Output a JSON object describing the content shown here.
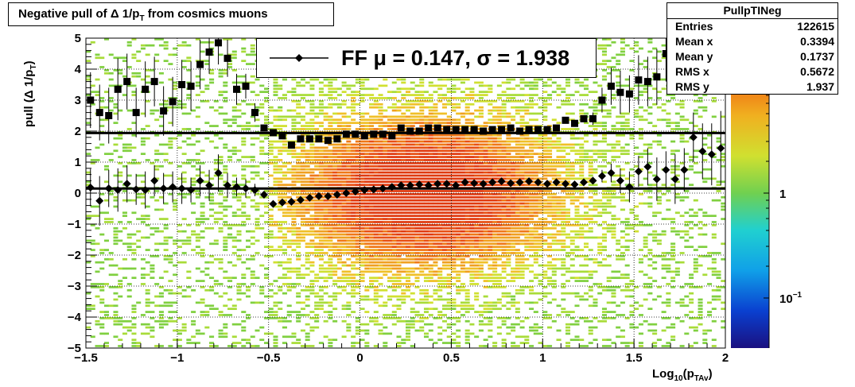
{
  "title": "Negative pull of Δ 1/p",
  "title_sub": "T",
  "title_suffix": " from cosmics muons",
  "stats": {
    "name": "PullpTINeg",
    "rows": [
      {
        "label": "Entries",
        "value": "122615"
      },
      {
        "label": "Mean x",
        "value": "0.3394"
      },
      {
        "label": "Mean y",
        "value": "0.1737"
      },
      {
        "label": "RMS x",
        "value": "0.5672"
      },
      {
        "label": "RMS y",
        "value": "1.937"
      }
    ]
  },
  "legend": {
    "text": "FF μ =  0.147, σ =   1.938"
  },
  "colors": {
    "markers": "#000000",
    "heatmap_core": "#e03a10",
    "heatmap_edge": "#80d040"
  },
  "chart_data": {
    "type": "heatmap",
    "xlabel_main": "Log",
    "xlabel_sub1": "10",
    "xlabel_mid": "(p",
    "xlabel_sub2": "TAv",
    "xlabel_end": ")",
    "ylabel_main": "pull (Δ 1/p",
    "ylabel_sub": "T",
    "ylabel_end": ")",
    "xlim": [
      -1.5,
      2
    ],
    "ylim": [
      -5,
      5
    ],
    "x_ticks": [
      -1.5,
      -1,
      -0.5,
      0,
      0.5,
      1,
      1.5,
      2
    ],
    "x_tick_labels": [
      "−1.5",
      "−1",
      "−0.5",
      "0",
      "0.5",
      "1",
      "1.5",
      "2"
    ],
    "y_ticks": [
      -5,
      -4,
      -3,
      -2,
      -1,
      0,
      1,
      2,
      3,
      4,
      5
    ],
    "y_tick_labels": [
      "−5",
      "−4",
      "−3",
      "−2",
      "−1",
      "0",
      "1",
      "2",
      "3",
      "4",
      "5"
    ],
    "z_scale": "log",
    "z_tick_labels": [
      {
        "base": "1",
        "exp": ""
      },
      {
        "base": "10",
        "exp": "−1"
      }
    ],
    "grid": true,
    "fit_lines": {
      "mean": 0.147,
      "sigma": 1.938
    },
    "series": [
      {
        "name": "mean",
        "marker": "diamond",
        "x": [
          -1.475,
          -1.425,
          -1.375,
          -1.325,
          -1.275,
          -1.225,
          -1.175,
          -1.125,
          -1.075,
          -1.025,
          -0.975,
          -0.925,
          -0.875,
          -0.825,
          -0.775,
          -0.725,
          -0.675,
          -0.625,
          -0.575,
          -0.525,
          -0.475,
          -0.425,
          -0.375,
          -0.325,
          -0.275,
          -0.225,
          -0.175,
          -0.125,
          -0.075,
          -0.025,
          0.025,
          0.075,
          0.125,
          0.175,
          0.225,
          0.275,
          0.325,
          0.375,
          0.425,
          0.475,
          0.525,
          0.575,
          0.625,
          0.675,
          0.725,
          0.775,
          0.825,
          0.875,
          0.925,
          0.975,
          1.025,
          1.075,
          1.125,
          1.175,
          1.225,
          1.275,
          1.325,
          1.375,
          1.425,
          1.475,
          1.525,
          1.575,
          1.625,
          1.675,
          1.725,
          1.775,
          1.825,
          1.875,
          1.925,
          1.975
        ],
        "y": [
          0.18,
          -0.25,
          0.15,
          0.1,
          0.3,
          0.12,
          0.1,
          0.4,
          0.15,
          0.2,
          0.15,
          0.1,
          0.4,
          0.25,
          0.65,
          0.25,
          0.2,
          0.15,
          0.1,
          -0.05,
          -0.35,
          -0.3,
          -0.28,
          -0.22,
          -0.15,
          -0.1,
          -0.1,
          -0.05,
          0.0,
          0.05,
          0.1,
          0.12,
          0.15,
          0.2,
          0.25,
          0.25,
          0.28,
          0.25,
          0.3,
          0.3,
          0.25,
          0.35,
          0.32,
          0.3,
          0.35,
          0.38,
          0.32,
          0.35,
          0.38,
          0.35,
          0.3,
          0.35,
          0.3,
          0.28,
          0.35,
          0.4,
          0.55,
          0.65,
          0.4,
          0.2,
          0.7,
          0.85,
          0.45,
          0.75,
          0.45,
          0.75,
          1.8,
          1.35,
          1.25,
          1.45
        ],
        "yerr": [
          0.6,
          0.8,
          0.6,
          0.7,
          0.6,
          0.5,
          0.6,
          0.5,
          0.5,
          0.5,
          0.5,
          0.4,
          0.5,
          0.5,
          0.6,
          0.4,
          0.3,
          0.3,
          0.2,
          0.1,
          0.05,
          0.05,
          0.05,
          0.05,
          0.05,
          0.05,
          0.05,
          0.05,
          0.05,
          0.05,
          0.05,
          0.05,
          0.05,
          0.05,
          0.05,
          0.05,
          0.05,
          0.05,
          0.05,
          0.05,
          0.05,
          0.05,
          0.05,
          0.05,
          0.05,
          0.05,
          0.05,
          0.05,
          0.05,
          0.05,
          0.05,
          0.05,
          0.05,
          0.05,
          0.05,
          0.1,
          0.2,
          0.3,
          0.4,
          0.5,
          0.5,
          0.6,
          0.7,
          0.6,
          0.8,
          0.7,
          0.8,
          0.9,
          1.0,
          1.2
        ]
      },
      {
        "name": "rms",
        "marker": "square",
        "x": [
          -1.475,
          -1.425,
          -1.375,
          -1.325,
          -1.275,
          -1.225,
          -1.175,
          -1.125,
          -1.075,
          -1.025,
          -0.975,
          -0.925,
          -0.875,
          -0.825,
          -0.775,
          -0.725,
          -0.675,
          -0.625,
          -0.575,
          -0.525,
          -0.475,
          -0.425,
          -0.375,
          -0.325,
          -0.275,
          -0.225,
          -0.175,
          -0.125,
          -0.075,
          -0.025,
          0.025,
          0.075,
          0.125,
          0.175,
          0.225,
          0.275,
          0.325,
          0.375,
          0.425,
          0.475,
          0.525,
          0.575,
          0.625,
          0.675,
          0.725,
          0.775,
          0.825,
          0.875,
          0.925,
          0.975,
          1.025,
          1.075,
          1.125,
          1.175,
          1.225,
          1.275,
          1.325,
          1.375,
          1.425,
          1.475,
          1.525,
          1.575,
          1.625,
          1.675,
          1.725
        ],
        "y": [
          3.0,
          2.6,
          2.5,
          3.35,
          3.6,
          2.6,
          3.35,
          3.6,
          2.65,
          2.95,
          3.5,
          3.45,
          4.15,
          4.55,
          4.85,
          4.35,
          3.35,
          3.45,
          2.6,
          2.1,
          1.95,
          1.85,
          1.55,
          1.75,
          1.75,
          1.75,
          1.7,
          1.75,
          1.9,
          1.9,
          1.85,
          1.9,
          1.9,
          1.85,
          2.1,
          2.0,
          2.0,
          2.1,
          2.1,
          2.05,
          2.05,
          2.05,
          2.05,
          2.0,
          2.05,
          2.05,
          2.1,
          2.0,
          2.05,
          2.05,
          2.05,
          2.1,
          2.35,
          2.25,
          2.4,
          2.4,
          3.0,
          3.45,
          3.25,
          3.2,
          3.65,
          3.6,
          3.75,
          4.5,
          4.8
        ],
        "yerr": [
          0.9,
          0.9,
          0.9,
          1.0,
          0.9,
          0.8,
          0.9,
          0.8,
          0.8,
          0.8,
          0.8,
          0.8,
          0.8,
          0.7,
          0.7,
          0.6,
          0.5,
          0.4,
          0.3,
          0.1,
          0.05,
          0.05,
          0.05,
          0.05,
          0.05,
          0.05,
          0.05,
          0.05,
          0.05,
          0.05,
          0.05,
          0.05,
          0.05,
          0.05,
          0.05,
          0.05,
          0.05,
          0.05,
          0.05,
          0.05,
          0.05,
          0.05,
          0.05,
          0.05,
          0.05,
          0.05,
          0.05,
          0.05,
          0.05,
          0.05,
          0.05,
          0.05,
          0.1,
          0.1,
          0.1,
          0.2,
          0.4,
          0.6,
          0.7,
          0.6,
          0.8,
          0.8,
          0.9,
          0.9,
          1.0
        ]
      }
    ]
  }
}
